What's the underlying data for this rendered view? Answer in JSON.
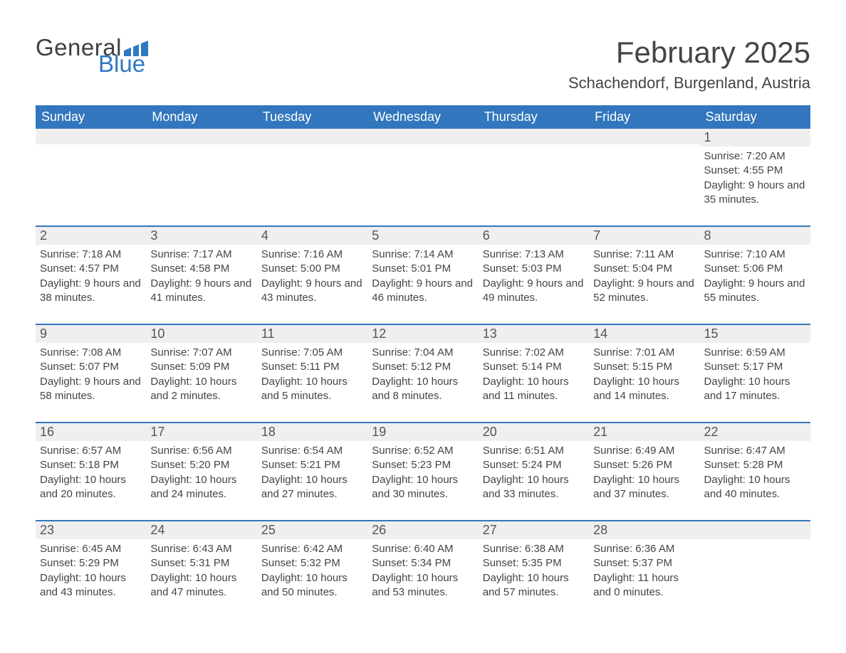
{
  "brand": {
    "word1": "General",
    "word2": "Blue",
    "accent": "#2f78c3"
  },
  "title": "February 2025",
  "location": "Schachendorf, Burgenland, Austria",
  "colors": {
    "header_bg": "#3277bd",
    "header_text": "#ffffff",
    "row_stripe": "#efefef",
    "row_border": "#3277bd",
    "body_text": "#444444"
  },
  "weekdays": [
    "Sunday",
    "Monday",
    "Tuesday",
    "Wednesday",
    "Thursday",
    "Friday",
    "Saturday"
  ],
  "first_weekday_index": 6,
  "days": [
    {
      "n": 1,
      "sunrise": "7:20 AM",
      "sunset": "4:55 PM",
      "daylight": "9 hours and 35 minutes."
    },
    {
      "n": 2,
      "sunrise": "7:18 AM",
      "sunset": "4:57 PM",
      "daylight": "9 hours and 38 minutes."
    },
    {
      "n": 3,
      "sunrise": "7:17 AM",
      "sunset": "4:58 PM",
      "daylight": "9 hours and 41 minutes."
    },
    {
      "n": 4,
      "sunrise": "7:16 AM",
      "sunset": "5:00 PM",
      "daylight": "9 hours and 43 minutes."
    },
    {
      "n": 5,
      "sunrise": "7:14 AM",
      "sunset": "5:01 PM",
      "daylight": "9 hours and 46 minutes."
    },
    {
      "n": 6,
      "sunrise": "7:13 AM",
      "sunset": "5:03 PM",
      "daylight": "9 hours and 49 minutes."
    },
    {
      "n": 7,
      "sunrise": "7:11 AM",
      "sunset": "5:04 PM",
      "daylight": "9 hours and 52 minutes."
    },
    {
      "n": 8,
      "sunrise": "7:10 AM",
      "sunset": "5:06 PM",
      "daylight": "9 hours and 55 minutes."
    },
    {
      "n": 9,
      "sunrise": "7:08 AM",
      "sunset": "5:07 PM",
      "daylight": "9 hours and 58 minutes."
    },
    {
      "n": 10,
      "sunrise": "7:07 AM",
      "sunset": "5:09 PM",
      "daylight": "10 hours and 2 minutes."
    },
    {
      "n": 11,
      "sunrise": "7:05 AM",
      "sunset": "5:11 PM",
      "daylight": "10 hours and 5 minutes."
    },
    {
      "n": 12,
      "sunrise": "7:04 AM",
      "sunset": "5:12 PM",
      "daylight": "10 hours and 8 minutes."
    },
    {
      "n": 13,
      "sunrise": "7:02 AM",
      "sunset": "5:14 PM",
      "daylight": "10 hours and 11 minutes."
    },
    {
      "n": 14,
      "sunrise": "7:01 AM",
      "sunset": "5:15 PM",
      "daylight": "10 hours and 14 minutes."
    },
    {
      "n": 15,
      "sunrise": "6:59 AM",
      "sunset": "5:17 PM",
      "daylight": "10 hours and 17 minutes."
    },
    {
      "n": 16,
      "sunrise": "6:57 AM",
      "sunset": "5:18 PM",
      "daylight": "10 hours and 20 minutes."
    },
    {
      "n": 17,
      "sunrise": "6:56 AM",
      "sunset": "5:20 PM",
      "daylight": "10 hours and 24 minutes."
    },
    {
      "n": 18,
      "sunrise": "6:54 AM",
      "sunset": "5:21 PM",
      "daylight": "10 hours and 27 minutes."
    },
    {
      "n": 19,
      "sunrise": "6:52 AM",
      "sunset": "5:23 PM",
      "daylight": "10 hours and 30 minutes."
    },
    {
      "n": 20,
      "sunrise": "6:51 AM",
      "sunset": "5:24 PM",
      "daylight": "10 hours and 33 minutes."
    },
    {
      "n": 21,
      "sunrise": "6:49 AM",
      "sunset": "5:26 PM",
      "daylight": "10 hours and 37 minutes."
    },
    {
      "n": 22,
      "sunrise": "6:47 AM",
      "sunset": "5:28 PM",
      "daylight": "10 hours and 40 minutes."
    },
    {
      "n": 23,
      "sunrise": "6:45 AM",
      "sunset": "5:29 PM",
      "daylight": "10 hours and 43 minutes."
    },
    {
      "n": 24,
      "sunrise": "6:43 AM",
      "sunset": "5:31 PM",
      "daylight": "10 hours and 47 minutes."
    },
    {
      "n": 25,
      "sunrise": "6:42 AM",
      "sunset": "5:32 PM",
      "daylight": "10 hours and 50 minutes."
    },
    {
      "n": 26,
      "sunrise": "6:40 AM",
      "sunset": "5:34 PM",
      "daylight": "10 hours and 53 minutes."
    },
    {
      "n": 27,
      "sunrise": "6:38 AM",
      "sunset": "5:35 PM",
      "daylight": "10 hours and 57 minutes."
    },
    {
      "n": 28,
      "sunrise": "6:36 AM",
      "sunset": "5:37 PM",
      "daylight": "11 hours and 0 minutes."
    }
  ],
  "labels": {
    "sunrise": "Sunrise:",
    "sunset": "Sunset:",
    "daylight": "Daylight:"
  }
}
